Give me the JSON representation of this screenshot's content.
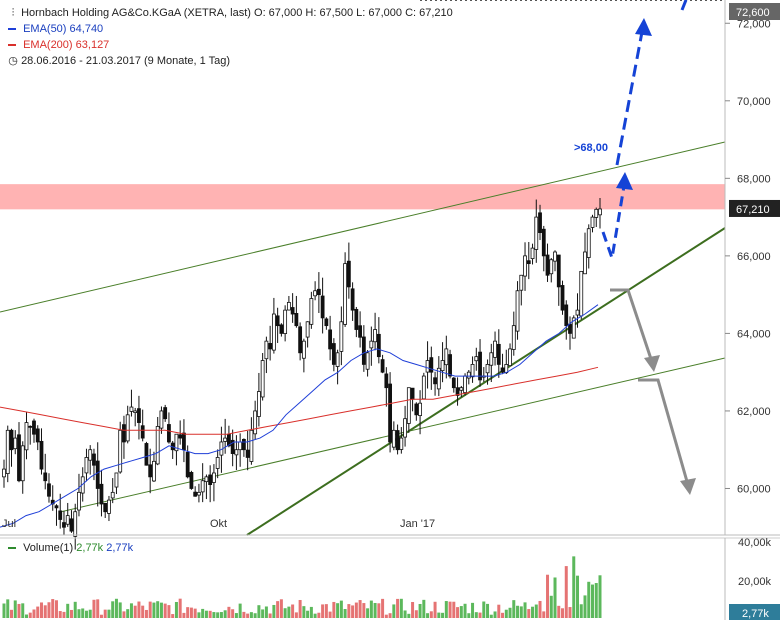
{
  "legend": {
    "title": "Hornbach Holding AG&Co.KGaA (XETRA, last)",
    "ohlc": "O: 67,000  H: 67,500  L: 67,000  C: 67,210",
    "ema50_label": "EMA(50)",
    "ema50_value": "64,740",
    "ema200_label": "EMA(200)",
    "ema200_value": "63,127",
    "range": "28.06.2016 - 21.03.2017",
    "period": "(9 Monate, 1 Tag)"
  },
  "volume_legend": {
    "label": "Volume(1)",
    "v1": "2,77k",
    "v2": "2,77k"
  },
  "colors": {
    "ema50": "#1f3fd8",
    "ema200": "#d9302b",
    "channel": "#4a7f2a",
    "support": "#3d6e1f",
    "projection_up": "#1543d6",
    "projection_down": "#8c8c8c",
    "resistance_band": "#ffb3b3",
    "vol_up": "#5cb85c",
    "vol_down": "#e57373"
  },
  "chart_data": {
    "type": "candlestick",
    "x_tick_labels": [
      "Jul",
      "Okt",
      "Jan '17"
    ],
    "y_tick_labels": [
      "60,000",
      "62,000",
      "64,000",
      "66,000",
      "68,000",
      "70,000",
      "72,000"
    ],
    "y_range": [
      58.8,
      72.6
    ],
    "last_price_label": "67,210",
    "target_label": "72,600",
    "target_price": 72.6,
    "annotation": ">68,00",
    "resistance_band": [
      67.2,
      67.85
    ],
    "ohlc_close_series": [
      60.5,
      61.5,
      61.0,
      61.3,
      60.2,
      61.1,
      61.7,
      61.6,
      61.4,
      61.2,
      60.5,
      60.2,
      59.8,
      59.6,
      59.5,
      59.2,
      59.0,
      59.3,
      58.9,
      59.4,
      59.9,
      60.3,
      60.8,
      61.0,
      60.6,
      60.0,
      59.6,
      59.4,
      59.7,
      59.9,
      60.4,
      61.5,
      61.2,
      61.9,
      62.1,
      62.0,
      61.7,
      61.3,
      60.6,
      60.3,
      60.7,
      61.6,
      62.0,
      61.8,
      61.2,
      61.0,
      61.4,
      61.3,
      61.0,
      60.3,
      60.0,
      59.8,
      59.9,
      60.2,
      60.3,
      60.1,
      60.4,
      60.8,
      61.2,
      61.3,
      61.1,
      60.9,
      61.0,
      61.2,
      61.0,
      60.8,
      61.5,
      62.0,
      62.5,
      63.3,
      63.8,
      63.6,
      64.5,
      64.2,
      64.0,
      64.6,
      64.8,
      64.5,
      64.2,
      63.5,
      63.8,
      64.3,
      64.9,
      65.1,
      65.0,
      64.4,
      64.2,
      63.6,
      63.2,
      63.5,
      64.3,
      65.8,
      65.2,
      64.6,
      64.1,
      63.9,
      63.2,
      63.5,
      63.8,
      64.1,
      63.4,
      63.0,
      62.6,
      61.2,
      61.5,
      61.0,
      61.3,
      61.8,
      62.6,
      62.3,
      61.9,
      62.2,
      62.9,
      63.3,
      63.0,
      62.7,
      63.1,
      63.3,
      63.6,
      62.9,
      62.6,
      62.4,
      62.6,
      62.9,
      63.0,
      63.2,
      63.4,
      62.8,
      62.9,
      63.2,
      63.5,
      63.8,
      63.2,
      63.0,
      63.2,
      63.6,
      64.2,
      65.1,
      65.5,
      66.0,
      65.8,
      66.2,
      67.0,
      66.6,
      66.0,
      65.5,
      65.9,
      66.1,
      65.2,
      64.6,
      64.2,
      64.0,
      64.4,
      64.6,
      65.6,
      66.1,
      66.7,
      67.0,
      67.2,
      67.21
    ],
    "ema50_series": [
      59.0,
      59.1,
      59.3,
      59.4,
      59.6,
      59.8,
      60.0,
      60.3,
      60.5,
      60.6,
      60.7,
      60.8,
      60.9,
      61.1,
      61.0,
      60.9,
      60.9,
      61.0,
      61.2,
      61.2,
      61.3,
      61.5,
      61.9,
      62.2,
      62.5,
      62.8,
      63.0,
      63.3,
      63.5,
      63.6,
      63.5,
      63.3,
      63.2,
      63.1,
      63.0,
      62.9,
      62.9,
      62.9,
      62.9,
      63.0,
      63.2,
      63.5,
      63.8,
      64.0,
      64.3,
      64.5,
      64.74
    ],
    "ema200_series": [
      62.1,
      62.0,
      61.9,
      61.8,
      61.7,
      61.6,
      61.5,
      61.5,
      61.5,
      61.4,
      61.4,
      61.4,
      61.5,
      61.6,
      61.7,
      61.8,
      61.9,
      62.0,
      62.1,
      62.2,
      62.3,
      62.3,
      62.4,
      62.5,
      62.6,
      62.7,
      62.8,
      62.9,
      63.0,
      63.127
    ],
    "volume_axis_labels": [
      "40,00k",
      "20,00k"
    ],
    "volume_last_label": "2,77k"
  }
}
